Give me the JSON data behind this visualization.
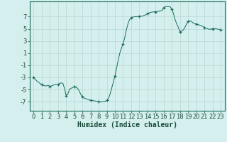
{
  "x": [
    0,
    0.2,
    0.4,
    0.6,
    0.8,
    1,
    1.2,
    1.4,
    1.6,
    1.8,
    2,
    2.2,
    2.4,
    2.6,
    2.8,
    3,
    3.2,
    3.4,
    3.6,
    3.8,
    4,
    4.2,
    4.4,
    4.6,
    4.8,
    5,
    5.2,
    5.4,
    5.6,
    5.8,
    6,
    6.2,
    6.4,
    6.6,
    6.8,
    7,
    7.2,
    7.4,
    7.6,
    7.8,
    8,
    8.2,
    8.4,
    8.6,
    8.8,
    9,
    9.2,
    9.4,
    9.6,
    9.8,
    10,
    10.2,
    10.4,
    10.6,
    10.8,
    11,
    11.2,
    11.4,
    11.6,
    11.8,
    12,
    12.2,
    12.4,
    12.6,
    12.8,
    13,
    13.2,
    13.4,
    13.6,
    13.8,
    14,
    14.2,
    14.4,
    14.6,
    14.8,
    15,
    15.2,
    15.4,
    15.6,
    15.8,
    16,
    16.2,
    16.4,
    16.6,
    16.8,
    17,
    17.2,
    17.4,
    17.6,
    17.8,
    18,
    18.2,
    18.4,
    18.6,
    18.8,
    19,
    19.2,
    19.4,
    19.6,
    19.8,
    20,
    20.2,
    20.4,
    20.6,
    20.8,
    21,
    21.2,
    21.4,
    21.6,
    21.8,
    22,
    22.2,
    22.4,
    22.6,
    22.8,
    23
  ],
  "y": [
    -3.0,
    -3.3,
    -3.6,
    -3.8,
    -4.0,
    -4.2,
    -4.3,
    -4.4,
    -4.4,
    -4.3,
    -4.5,
    -4.4,
    -4.3,
    -4.2,
    -4.2,
    -4.2,
    -4.0,
    -3.9,
    -4.0,
    -4.8,
    -6.0,
    -5.8,
    -5.0,
    -4.8,
    -4.7,
    -4.5,
    -4.6,
    -4.8,
    -5.2,
    -5.8,
    -6.2,
    -6.4,
    -6.5,
    -6.6,
    -6.7,
    -6.8,
    -6.8,
    -6.85,
    -6.9,
    -6.95,
    -7.0,
    -7.05,
    -7.05,
    -7.0,
    -6.95,
    -6.8,
    -6.5,
    -5.8,
    -4.8,
    -3.8,
    -2.8,
    -1.5,
    -0.2,
    1.0,
    1.8,
    2.5,
    3.5,
    4.8,
    5.8,
    6.5,
    6.8,
    6.9,
    7.0,
    7.0,
    7.0,
    7.0,
    7.05,
    7.1,
    7.2,
    7.3,
    7.5,
    7.6,
    7.7,
    7.75,
    7.8,
    7.8,
    7.85,
    7.9,
    7.95,
    8.0,
    8.5,
    8.6,
    8.65,
    8.65,
    8.6,
    8.2,
    7.5,
    6.5,
    5.8,
    5.2,
    4.5,
    4.6,
    4.8,
    5.2,
    5.8,
    6.2,
    6.3,
    6.2,
    6.0,
    5.8,
    5.8,
    5.7,
    5.6,
    5.5,
    5.4,
    5.2,
    5.1,
    5.0,
    4.9,
    4.95,
    5.0,
    5.05,
    5.0,
    4.95,
    4.9,
    4.8
  ],
  "marker_x": [
    0,
    1,
    2,
    3,
    4,
    5,
    6,
    7,
    8,
    9,
    10,
    11,
    12,
    13,
    14,
    15,
    16,
    17,
    18,
    19,
    20,
    21,
    22,
    23
  ],
  "marker_y": [
    -3.0,
    -4.2,
    -4.5,
    -4.2,
    -6.0,
    -4.5,
    -6.2,
    -6.8,
    -7.0,
    -6.8,
    -2.8,
    2.5,
    6.8,
    7.0,
    7.5,
    7.8,
    8.5,
    8.2,
    4.5,
    6.2,
    5.8,
    5.2,
    5.0,
    4.8
  ],
  "line_color": "#1a6b5a",
  "marker": "+",
  "marker_size": 3,
  "background_color": "#d4efed",
  "grid_color": "#b8d8d4",
  "axis_color": "#1a6b5a",
  "text_color": "#1a4a3a",
  "xlabel": "Humidex (Indice chaleur)",
  "ylim": [
    -8.5,
    9.5
  ],
  "xlim": [
    -0.5,
    23.5
  ],
  "yticks": [
    -7,
    -5,
    -3,
    -1,
    1,
    3,
    5,
    7
  ],
  "xticks": [
    0,
    1,
    2,
    3,
    4,
    5,
    6,
    7,
    8,
    9,
    10,
    11,
    12,
    13,
    14,
    15,
    16,
    17,
    18,
    19,
    20,
    21,
    22,
    23
  ],
  "xlabel_fontsize": 7,
  "tick_fontsize": 6
}
